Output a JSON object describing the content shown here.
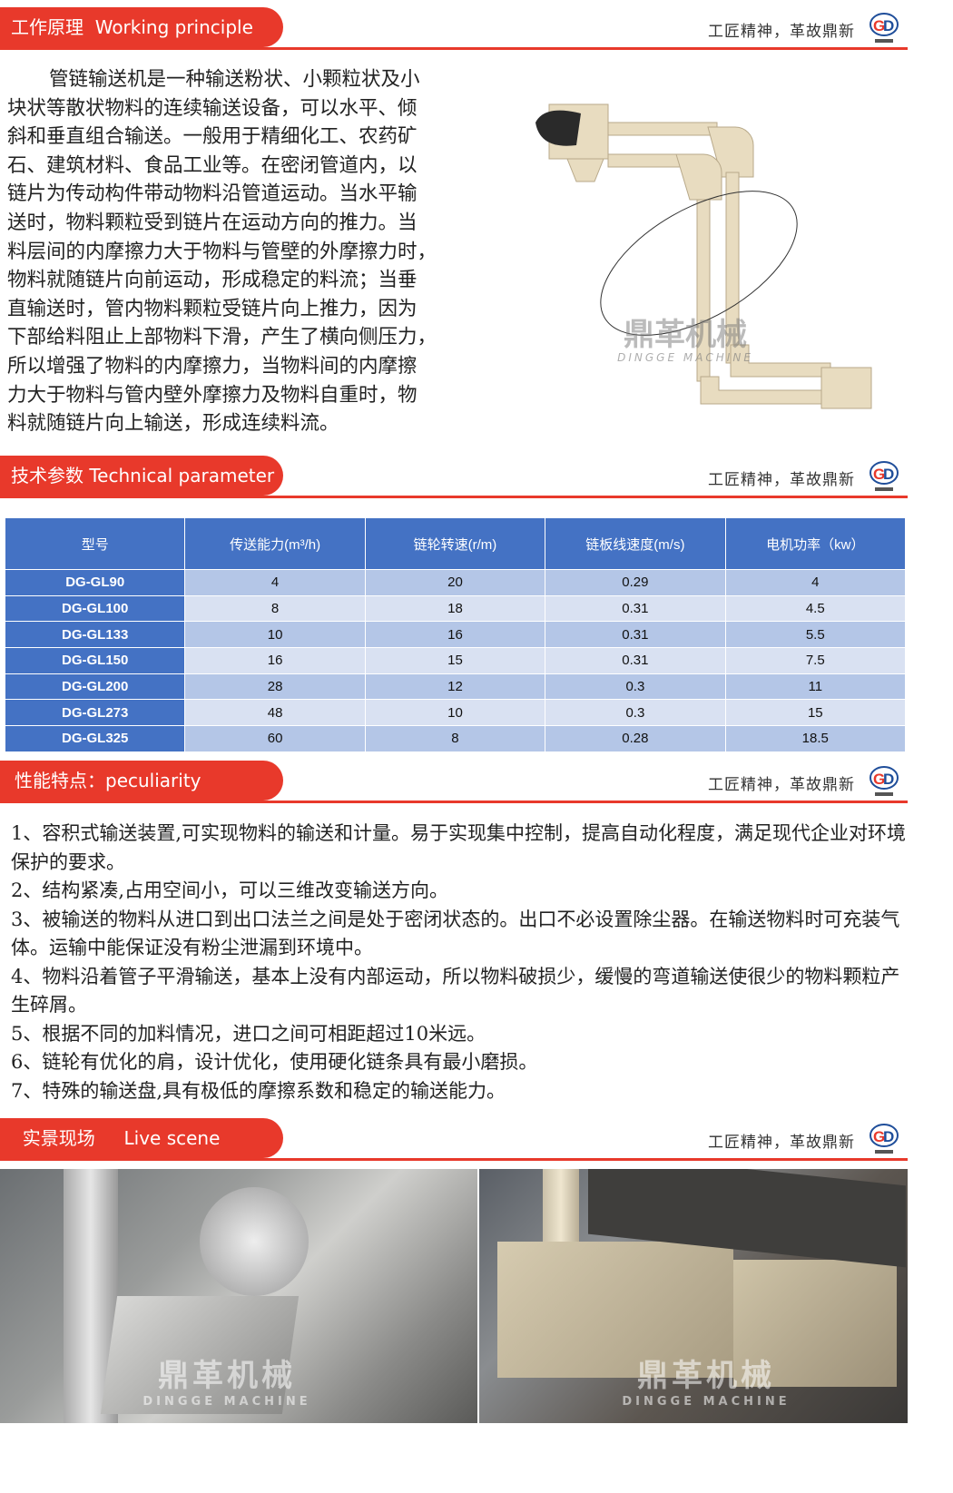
{
  "brand": {
    "slogan": "工匠精神，革故鼎新",
    "logo_text": "GD",
    "watermark_cn": "鼎革机械",
    "watermark_en": "DINGGE MACHINE",
    "accent": "#e8392b",
    "table_header": "#4472c4",
    "row_odd": "#b4c6e7",
    "row_even": "#d9e1f2"
  },
  "sections": {
    "working": {
      "title": "工作原理  Working principle"
    },
    "technical": {
      "title": "技术参数 Technical parameter"
    },
    "peculiarity": {
      "title": "性能特点：peculiarity"
    },
    "live": {
      "title": "  实景现场     Live scene"
    }
  },
  "principle_lines": [
    "管链输送机是一种输送粉状、小颗粒状及小",
    "块状等散状物料的连续输送设备，可以水平、倾",
    "斜和垂直组合输送。一般用于精细化工、农药矿",
    "石、建筑材料、食品工业等。在密闭管道内，以",
    "链片为传动构件带动物料沿管道运动。当水平输",
    "送时，物料颗粒受到链片在运动方向的推力。当",
    "料层间的内摩擦力大于物料与管壁的外摩擦力时，",
    "物料就随链片向前运动，形成稳定的料流；当垂",
    "直输送时，管内物料颗粒受链片向上推力，因为",
    "下部给料阻止上部物料下滑，产生了横向侧压力，",
    "所以增强了物料的内摩擦力，当物料间的内摩擦",
    "力大于物料与管内壁外摩擦力及物料自重时，物",
    "料就随链片向上输送，形成连续料流。"
  ],
  "table": {
    "headers": [
      "型号",
      "传送能力(m³/h)",
      "链轮转速(r/m)",
      "链板线速度(m/s)",
      "电机功率（kw）"
    ],
    "rows": [
      [
        "DG-GL90",
        "4",
        "20",
        "0.29",
        "4"
      ],
      [
        "DG-GL100",
        "8",
        "18",
        "0.31",
        "4.5"
      ],
      [
        "DG-GL133",
        "10",
        "16",
        "0.31",
        "5.5"
      ],
      [
        "DG-GL150",
        "16",
        "15",
        "0.31",
        "7.5"
      ],
      [
        "DG-GL200",
        "28",
        "12",
        "0.3",
        "11"
      ],
      [
        "DG-GL273",
        "48",
        "10",
        "0.3",
        "15"
      ],
      [
        "DG-GL325",
        "60",
        "8",
        "0.28",
        "18.5"
      ]
    ]
  },
  "features": [
    "1、容积式输送装置,可实现物料的输送和计量。易于实现集中控制，提高自动化程度，满足现代企业对环境保护的要求。",
    "2、结构紧凑,占用空间小，可以三维改变输送方向。",
    "3、被输送的物料从进口到出口法兰之间是处于密闭状态的。出口不必设置除尘器。在输送物料时可充装气体。运输中能保证没有粉尘泄漏到环境中。",
    "4、物料沿着管子平滑输送，基本上没有内部运动，所以物料破损少，缓慢的弯道输送使很少的物料颗粒产生碎屑。",
    "5、根据不同的加料情况，进口之间可相距超过10米远。",
    "6、链轮有优化的肩，设计优化，使用硬化链条具有最小磨损。",
    "7、特殊的输送盘,具有极低的摩擦系数和稳定的输送能力。"
  ]
}
